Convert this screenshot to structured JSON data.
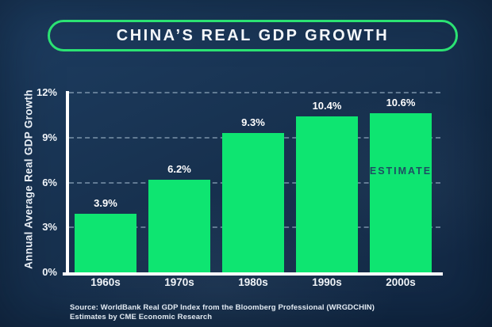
{
  "title": "CHINA’S REAL GDP GROWTH",
  "chart_data": {
    "type": "bar",
    "title": "CHINA’S REAL GDP GROWTH",
    "categories": [
      "1960s",
      "1970s",
      "1980s",
      "1990s",
      "2000s"
    ],
    "values": [
      3.9,
      6.2,
      9.3,
      10.4,
      10.6
    ],
    "value_labels": [
      "3.9%",
      "6.2%",
      "9.3%",
      "10.4%",
      "10.6%"
    ],
    "xlabel": "",
    "ylabel": "Annual Average Real GDP Growth",
    "ylim": [
      0,
      12
    ],
    "yticks": [
      0,
      3,
      6,
      9,
      12
    ],
    "ytick_labels": [
      "0%",
      "3%",
      "6%",
      "9%",
      "12%"
    ],
    "grid": true,
    "gridline_style": "dashed",
    "legend": false,
    "annotation": {
      "category": "2000s",
      "text": "ESTIMATE"
    },
    "bar_color": "#0ee571",
    "annotation_color": "#1e4d63"
  },
  "source": {
    "line1": "Source: WorldBank Real GDP Index from the Bloomberg Professional (WRGDCHIN)",
    "line2": "Estimates by CME Economic Research"
  },
  "colors": {
    "background": "#16304e",
    "accent_green": "#0ee571",
    "axis": "#ffffff",
    "gridline": "#9fb6ca",
    "text": "#ffffff"
  }
}
